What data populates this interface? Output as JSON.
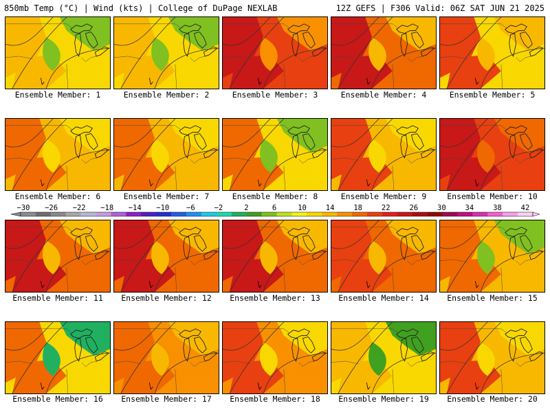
{
  "header": {
    "left": "850mb Temp (°C) | Wind (kts) | College of DuPage NEXLAB",
    "right": "12Z GEFS | F306 Valid: 06Z SAT JUN 21 2025"
  },
  "legend": {
    "labels": [
      "-30",
      "-26",
      "-22",
      "-18",
      "-14",
      "-10",
      "-6",
      "-2",
      "2",
      "6",
      "10",
      "14",
      "18",
      "22",
      "26",
      "30",
      "34",
      "38",
      "42"
    ],
    "colors": [
      "#8c8c8c",
      "#6e6e6e",
      "#8a8a8a",
      "#a8a8a8",
      "#b8b8d8",
      "#c49ce0",
      "#b060d8",
      "#8a20c8",
      "#5020c0",
      "#2030d0",
      "#2060e0",
      "#2090f0",
      "#20c8e8",
      "#20d8b0",
      "#20b060",
      "#40a020",
      "#80c020",
      "#c0e020",
      "#f0f020",
      "#f8d800",
      "#f8b800",
      "#f89000",
      "#f06800",
      "#e84010",
      "#e02020",
      "#c81818",
      "#a81010",
      "#900808",
      "#a00850",
      "#c01080",
      "#d830b0",
      "#f060d0",
      "#f8a0e8",
      "#fcd0f4"
    ],
    "colors_note": ""
  },
  "members": [
    {
      "label": "Ensemble Member: 1",
      "base": "#f8d800",
      "accent": "#80c020",
      "hot": "#f8b800"
    },
    {
      "label": "Ensemble Member: 2",
      "base": "#f8d800",
      "accent": "#80c020",
      "hot": "#f8b800"
    },
    {
      "label": "Ensemble Member: 3",
      "base": "#e84010",
      "accent": "#f89000",
      "hot": "#c81818"
    },
    {
      "label": "Ensemble Member: 4",
      "base": "#f06800",
      "accent": "#f8b800",
      "hot": "#c81818"
    },
    {
      "label": "Ensemble Member: 5",
      "base": "#f8d800",
      "accent": "#f8b800",
      "hot": "#e84010"
    },
    {
      "label": "Ensemble Member: 6",
      "base": "#f8b800",
      "accent": "#f8d800",
      "hot": "#f06800"
    },
    {
      "label": "Ensemble Member: 7",
      "base": "#f8b800",
      "accent": "#f8d800",
      "hot": "#f06800"
    },
    {
      "label": "Ensemble Member: 8",
      "base": "#f8d800",
      "accent": "#80c020",
      "hot": "#f06800"
    },
    {
      "label": "Ensemble Member: 9",
      "base": "#f8b800",
      "accent": "#f8d800",
      "hot": "#e84010"
    },
    {
      "label": "Ensemble Member: 10",
      "base": "#e84010",
      "accent": "#f06800",
      "hot": "#c81818"
    },
    {
      "label": "Ensemble Member: 11",
      "base": "#f06800",
      "accent": "#f8b800",
      "hot": "#c81818"
    },
    {
      "label": "Ensemble Member: 12",
      "base": "#f06800",
      "accent": "#f8b800",
      "hot": "#c81818"
    },
    {
      "label": "Ensemble Member: 13",
      "base": "#f06800",
      "accent": "#f8b800",
      "hot": "#c81818"
    },
    {
      "label": "Ensemble Member: 14",
      "base": "#f06800",
      "accent": "#f8b800",
      "hot": "#e84010"
    },
    {
      "label": "Ensemble Member: 15",
      "base": "#f8b800",
      "accent": "#80c020",
      "hot": "#f06800"
    },
    {
      "label": "Ensemble Member: 16",
      "base": "#f8d800",
      "accent": "#20b060",
      "hot": "#f06800"
    },
    {
      "label": "Ensemble Member: 17",
      "base": "#f89000",
      "accent": "#f8b800",
      "hot": "#f06800"
    },
    {
      "label": "Ensemble Member: 18",
      "base": "#f89000",
      "accent": "#f8d800",
      "hot": "#e84010"
    },
    {
      "label": "Ensemble Member: 19",
      "base": "#f8d800",
      "accent": "#40a020",
      "hot": "#f8b800"
    },
    {
      "label": "Ensemble Member: 20",
      "base": "#f8b800",
      "accent": "#f8d800",
      "hot": "#e84010"
    }
  ]
}
